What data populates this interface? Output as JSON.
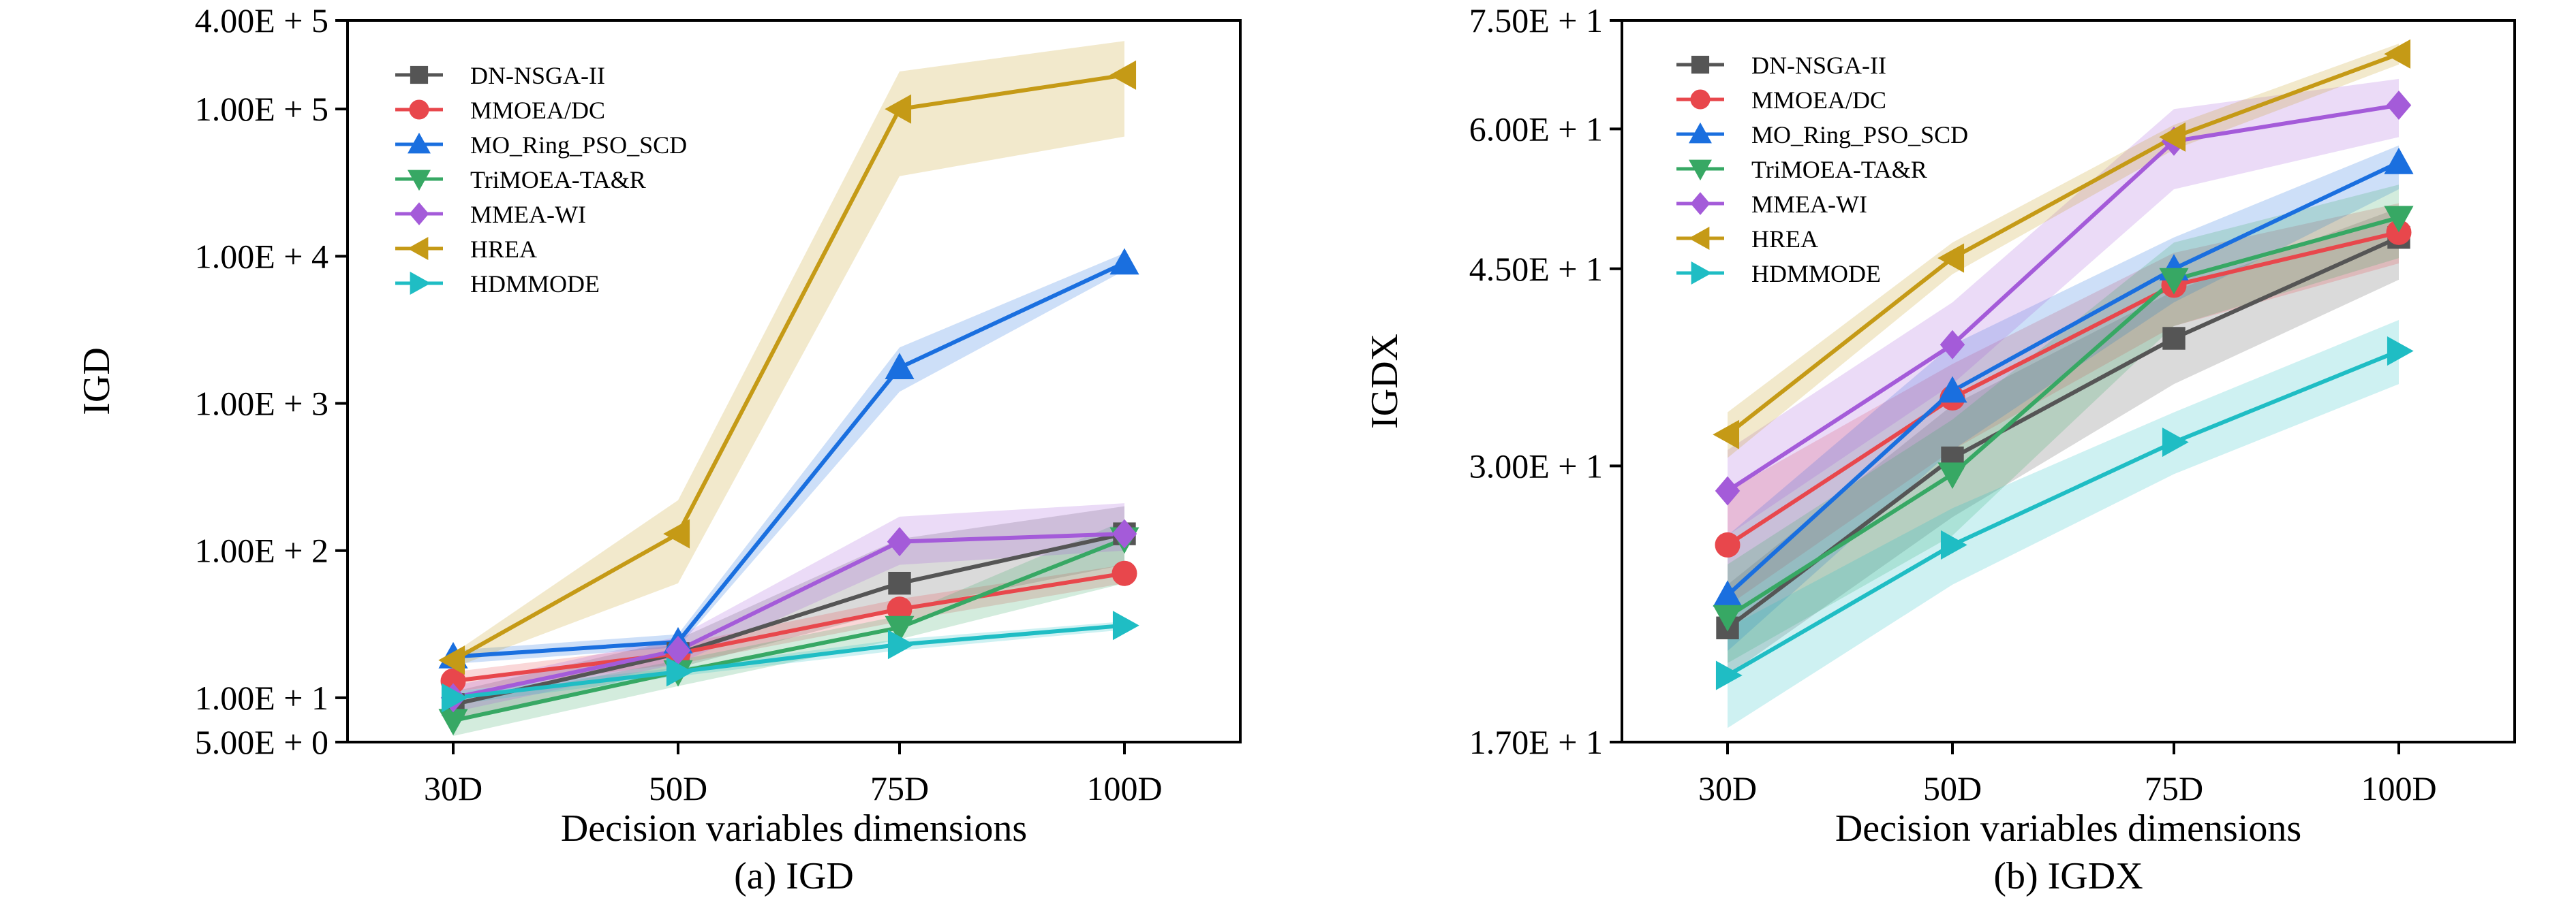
{
  "chart_data": [
    {
      "type": "line",
      "caption": "(a) IGD",
      "xlabel": "Decision variables dimensions",
      "ylabel": "IGD",
      "categories": [
        "30D",
        "50D",
        "75D",
        "100D"
      ],
      "y_ticks": [
        {
          "label": "5.00E + 0",
          "value": 5
        },
        {
          "label": "1.00E + 1",
          "value": 10
        },
        {
          "label": "1.00E + 2",
          "value": 100
        },
        {
          "label": "1.00E + 3",
          "value": 1000
        },
        {
          "label": "1.00E + 4",
          "value": 10000
        },
        {
          "label": "1.00E + 5",
          "value": 100000
        },
        {
          "label": "4.00E + 5",
          "value": 400000
        }
      ],
      "ylim": [
        5,
        400000
      ],
      "yscale": "log",
      "legend_position": "top-left",
      "series": [
        {
          "name": "DN-NSGA-II",
          "values": [
            9,
            20,
            60,
            130
          ],
          "band_low": [
            7,
            16,
            40,
            80
          ],
          "band_high": [
            11,
            25,
            120,
            200
          ],
          "color": "#555555",
          "marker": "square"
        },
        {
          "name": "MMOEA/DC",
          "values": [
            13,
            20,
            40,
            70
          ],
          "band_low": [
            11,
            17,
            33,
            60
          ],
          "band_high": [
            15,
            23,
            47,
            80
          ],
          "color": "#e8474c",
          "marker": "circle"
        },
        {
          "name": "MO_Ring_PSO_SCD",
          "values": [
            19,
            24,
            1750,
            9000
          ],
          "band_low": [
            17,
            22,
            1200,
            8000
          ],
          "band_high": [
            21,
            27,
            2400,
            10500
          ],
          "color": "#1a6fdf",
          "marker": "triangle-up"
        },
        {
          "name": "TriMOEA-TA&R",
          "values": [
            7,
            15,
            30,
            120
          ],
          "band_low": [
            5.5,
            12,
            25,
            60
          ],
          "band_high": [
            9,
            18,
            36,
            160
          ],
          "color": "#37a864",
          "marker": "triangle-down"
        },
        {
          "name": "MMEA-WI",
          "values": [
            10,
            21,
            115,
            130
          ],
          "band_low": [
            8,
            17,
            80,
            100
          ],
          "band_high": [
            12,
            26,
            170,
            210
          ],
          "color": "#a45bd9",
          "marker": "diamond"
        },
        {
          "name": "HREA",
          "values": [
            18,
            130,
            100000,
            170000
          ],
          "band_low": [
            16,
            60,
            35000,
            65000
          ],
          "band_high": [
            20,
            220,
            180000,
            290000
          ],
          "color": "#c59a16",
          "marker": "triangle-left"
        },
        {
          "name": "HDMMODE",
          "values": [
            10,
            15,
            23,
            31
          ],
          "band_low": [
            9,
            14,
            21,
            29
          ],
          "band_high": [
            11,
            16,
            25,
            33
          ],
          "color": "#1fbdc4",
          "marker": "triangle-right"
        }
      ]
    },
    {
      "type": "line",
      "caption": "(b) IGDX",
      "xlabel": "Decision variables dimensions",
      "ylabel": "IGDX",
      "categories": [
        "30D",
        "50D",
        "75D",
        "100D"
      ],
      "y_ticks": [
        {
          "label": "1.70E + 1",
          "value": 17
        },
        {
          "label": "3.00E + 1",
          "value": 30
        },
        {
          "label": "4.50E + 1",
          "value": 45
        },
        {
          "label": "6.00E + 1",
          "value": 60
        },
        {
          "label": "7.50E + 1",
          "value": 75
        }
      ],
      "ylim": [
        17,
        75
      ],
      "yscale": "log",
      "legend_position": "top-left",
      "series": [
        {
          "name": "DN-NSGA-II",
          "values": [
            21.5,
            30.5,
            39,
            48
          ],
          "band_low": [
            19.5,
            27,
            35.5,
            44
          ],
          "band_high": [
            23.5,
            34,
            43,
            51
          ],
          "color": "#555555",
          "marker": "square"
        },
        {
          "name": "MMOEA/DC",
          "values": [
            25.5,
            34.5,
            43.5,
            48.5
          ],
          "band_low": [
            22.5,
            31,
            40,
            45.5
          ],
          "band_high": [
            28.5,
            37,
            46.5,
            51.5
          ],
          "color": "#e8474c",
          "marker": "circle"
        },
        {
          "name": "MO_Ring_PSO_SCD",
          "values": [
            23,
            35,
            45,
            56
          ],
          "band_low": [
            20.5,
            31,
            42,
            53
          ],
          "band_high": [
            26,
            38.5,
            48,
            58
          ],
          "color": "#1a6fdf",
          "marker": "triangle-up"
        },
        {
          "name": "TriMOEA-TA&R",
          "values": [
            22,
            29.5,
            44,
            50
          ],
          "band_low": [
            20,
            26,
            40,
            46
          ],
          "band_high": [
            24.5,
            33,
            47.5,
            53.5
          ],
          "color": "#37a864",
          "marker": "triangle-down"
        },
        {
          "name": "MMEA-WI",
          "values": [
            28.5,
            38.5,
            58.5,
            63
          ],
          "band_low": [
            26,
            35.5,
            53,
            59
          ],
          "band_high": [
            31,
            42,
            62.5,
            66.5
          ],
          "color": "#a45bd9",
          "marker": "diamond"
        },
        {
          "name": "HREA",
          "values": [
            32,
            46,
            59,
            70
          ],
          "band_low": [
            30.5,
            44.5,
            57.5,
            68.5
          ],
          "band_high": [
            33.5,
            47.5,
            60.5,
            71.5
          ],
          "color": "#c59a16",
          "marker": "triangle-left"
        },
        {
          "name": "HDMMODE",
          "values": [
            19.5,
            25.5,
            31.5,
            38
          ],
          "band_low": [
            17.5,
            23.5,
            29.5,
            35.5
          ],
          "band_high": [
            21.5,
            27.5,
            33.5,
            40.5
          ],
          "color": "#1fbdc4",
          "marker": "triangle-right"
        }
      ]
    }
  ]
}
